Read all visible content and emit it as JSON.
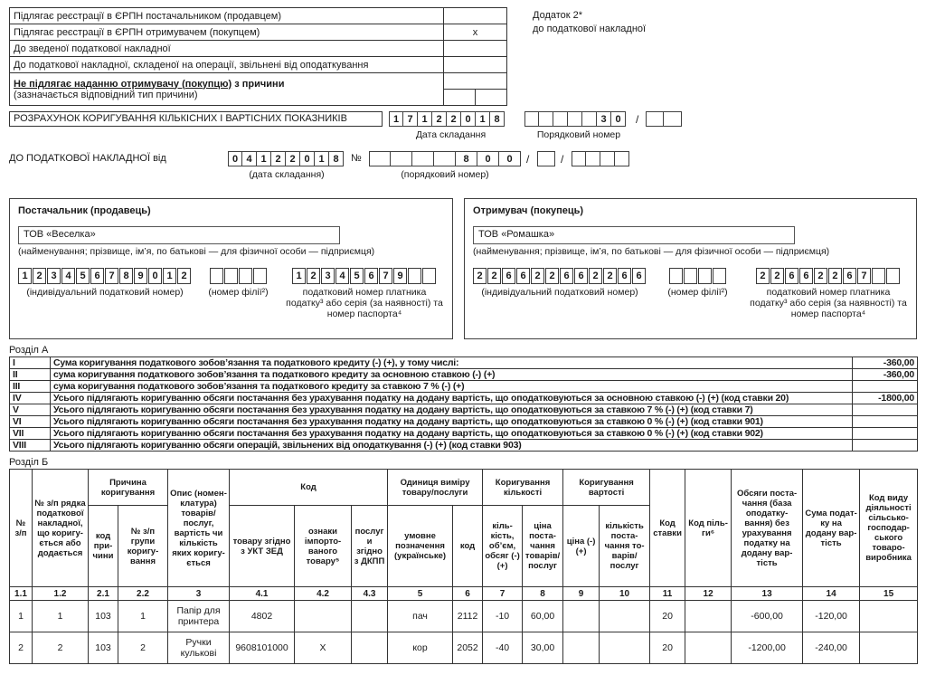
{
  "top_table": {
    "rows": [
      {
        "label": "Підлягає реєстрації в ЄРПН постачальником (продавцем)",
        "mark": ""
      },
      {
        "label": "Підлягає реєстрації в ЄРПН отримувачем (покупцем)",
        "mark": "х"
      },
      {
        "label": "До зведеної податкової накладної",
        "mark": ""
      },
      {
        "label": "До податкової накладної, складеної на операції, звільнені від оподаткування",
        "mark": ""
      }
    ],
    "reason_row": {
      "line1_underlined": "Не підлягає наданню отримувачу (покупцю)",
      "line1_tail": " з причини",
      "line2": "(зазначається відповідний тип причини)",
      "type_cells": [
        "",
        ""
      ]
    }
  },
  "appendix": {
    "line1": "Додаток 2*",
    "line2": "до податкової накладної"
  },
  "calc_header": {
    "title": "РОЗРАХУНОК КОРИГУВАННЯ КІЛЬКІСНИХ І ВАРТІСНИХ ПОКАЗНИКІВ",
    "date_cells": [
      "1",
      "7",
      "1",
      "2",
      "2",
      "0",
      "1",
      "8"
    ],
    "date_caption": "Дата складання",
    "seq_cells": [
      "",
      "",
      "",
      "",
      "",
      "3",
      "0"
    ],
    "slash": "/",
    "seq_extra_cells": [
      "",
      ""
    ],
    "seq_caption": "Порядковий номер"
  },
  "invoice_ref": {
    "title": "ДО ПОДАТКОВОЇ НАКЛАДНОЇ від",
    "date_cells": [
      "0",
      "4",
      "1",
      "2",
      "2",
      "0",
      "1",
      "8"
    ],
    "number_sign": "№",
    "seq_cells": [
      "",
      "",
      "",
      "",
      "8",
      "0",
      "0"
    ],
    "slash1": "/",
    "branch_cells": [
      ""
    ],
    "slash2": "/",
    "extra_cells": [
      "",
      "",
      "",
      ""
    ],
    "date_caption": "(дата складання)",
    "seq_caption": "(порядковий номер)"
  },
  "supplier": {
    "title": "Постачальник (продавець)",
    "name": "ТОВ «Веселка»",
    "name_caption": "(найменування; прізвище, ім’я, по батькові — для фізичної особи — підприємця)",
    "ipn_cells": [
      "1",
      "2",
      "3",
      "4",
      "5",
      "6",
      "7",
      "8",
      "9",
      "0",
      "1",
      "2"
    ],
    "ipn_caption": "(індивідуальний податковий номер)",
    "branch_cells": [
      "",
      "",
      "",
      ""
    ],
    "branch_caption": "(номер філії²)",
    "tax_cells": [
      "1",
      "2",
      "3",
      "4",
      "5",
      "6",
      "7",
      "9",
      "",
      ""
    ],
    "tax_caption": "податковий номер платника податку³ або серія (за наявності) та номер паспорта⁴"
  },
  "buyer": {
    "title": "Отримувач (покупець)",
    "name": "ТОВ «Ромашка»",
    "name_caption": "(найменування; прізвище, ім’я, по батькові — для фізичної особи — підприємця)",
    "ipn_cells": [
      "2",
      "2",
      "6",
      "6",
      "2",
      "2",
      "6",
      "6",
      "2",
      "2",
      "6",
      "6"
    ],
    "ipn_caption": "(індивідуальний податковий номер)",
    "branch_cells": [
      "",
      "",
      "",
      ""
    ],
    "branch_caption": "(номер філії²)",
    "tax_cells": [
      "2",
      "2",
      "6",
      "6",
      "2",
      "2",
      "6",
      "7",
      "",
      ""
    ],
    "tax_caption": "податковий номер платника податку³ або серія (за наявності) та номер паспорта⁴"
  },
  "section_a": {
    "label": "Розділ А",
    "rows": [
      [
        "I",
        "Сума коригування податкового зобов’язання та податкового кредиту (-) (+), у тому числі:",
        "-360,00"
      ],
      [
        "II",
        "сума коригування податкового зобов’язання та податкового кредиту за основною ставкою (-) (+)",
        "-360,00"
      ],
      [
        "III",
        "сума коригування податкового зобов’язання та податкового кредиту за ставкою 7 % (-) (+)",
        ""
      ],
      [
        "IV",
        "Усього підлягають коригуванню обсяги постачання без урахування податку на додану вартість, що оподатковуються за основною ставкою (-) (+) (код ставки 20)",
        "-1800,00"
      ],
      [
        "V",
        "Усього підлягають коригуванню обсяги постачання без урахування податку на додану вартість, що оподатковуються за ставкою 7 % (-) (+) (код ставки 7)",
        ""
      ],
      [
        "VI",
        "Усього підлягають коригуванню обсяги постачання без урахування податку на додану вартість, що оподатковуються за ставкою 0 % (-) (+) (код ставки 901)",
        ""
      ],
      [
        "VII",
        "Усього підлягають коригуванню обсяги постачання без урахування податку на додану вартість, що оподатковуються за ставкою 0 % (-) (+) (код ставки 902)",
        ""
      ],
      [
        "VIII",
        "Усього підлягають коригуванню обсяги операцій, звільнених від оподаткування (-) (+) (код ставки 903)",
        ""
      ]
    ]
  },
  "section_b": {
    "label": "Розділ Б",
    "header": {
      "col_no": "№ з/п",
      "col_row_no": "№ з/п рядка подат­кової наклад­ної, що коригу­ється або додається",
      "grp_reason": "Причина коригування",
      "col_reason_code": "код при­чини",
      "col_group_no": "№ з/п групи коригу­вання",
      "col_desc": "Опис (номен­клатура) товарів/​послуг, вартість чи кіль­кість яких коригу­ється",
      "grp_code": "Код",
      "col_ukt": "товару згідно з УКТ ЗЕД",
      "col_import": "ознаки імпорто­ваного товару⁵",
      "col_dkpp": "послуги згідно з ДКПП",
      "grp_unit": "Одиниця виміру товару/​послуги",
      "col_unit_name": "умовне позна­чення (україн­ське)",
      "col_unit_code": "код",
      "grp_qty": "Коригування кількості",
      "col_qty": "кіль­кість, об’єм, обсяг (-) (+)",
      "col_qty_price": "ціна поста­чання то­варів/​послуг",
      "grp_value": "Коригування вартості",
      "col_price": "ціна (-) (+)",
      "col_value_qty": "кіль­кість поста­чання то­варів/​послуг",
      "col_rate": "Код став­ки",
      "col_benefit": "Код піль­ги⁶",
      "col_volume": "Обсяги поста­чання (база опо­датку­вання) без ураху­вання податку на додану вар­тість",
      "col_vat": "Сума подат­ку на додану вар­тість",
      "col_agri": "Код виду діяль­ності сільсько­господар­ського товаро­вироб­ника"
    },
    "numbering": [
      [
        "1.1",
        "1.2",
        "2.1",
        "2.2",
        "3",
        "4.1",
        "4.2",
        "4.3",
        "5",
        "6",
        "7",
        "8",
        "9",
        "10",
        "11",
        "12",
        "13",
        "14",
        "15"
      ]
    ],
    "rows": [
      [
        "1",
        "1",
        "103",
        "1",
        "Папір для принтера",
        "4802",
        "",
        "",
        "пач",
        "2112",
        "-10",
        "60,00",
        "",
        "",
        "20",
        "",
        "-600,00",
        "-120,00",
        ""
      ],
      [
        "2",
        "2",
        "103",
        "2",
        "Ручки кулькові",
        "9608101000",
        "Х",
        "",
        "кор",
        "2052",
        "-40",
        "30,00",
        "",
        "",
        "20",
        "",
        "-1200,00",
        "-240,00",
        ""
      ]
    ]
  }
}
